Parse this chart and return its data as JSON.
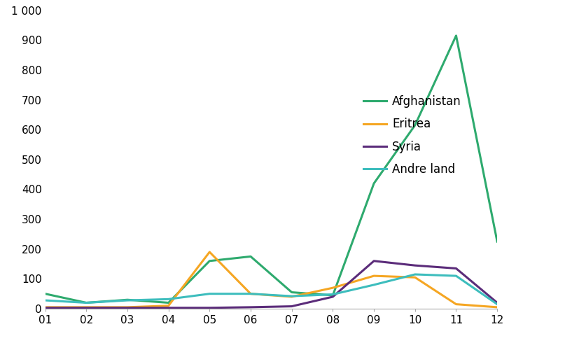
{
  "months": [
    1,
    2,
    3,
    4,
    5,
    6,
    7,
    8,
    9,
    10,
    11,
    12
  ],
  "month_labels": [
    "01",
    "02",
    "03",
    "04",
    "05",
    "06",
    "07",
    "08",
    "09",
    "10",
    "11",
    "12"
  ],
  "afghanistan": [
    50,
    20,
    30,
    20,
    160,
    175,
    55,
    45,
    420,
    615,
    915,
    225
  ],
  "eritrea": [
    5,
    5,
    5,
    10,
    190,
    50,
    40,
    70,
    110,
    105,
    15,
    5
  ],
  "syria": [
    3,
    3,
    3,
    3,
    3,
    5,
    8,
    40,
    160,
    145,
    135,
    20
  ],
  "andre_land": [
    28,
    20,
    28,
    32,
    50,
    50,
    42,
    48,
    80,
    115,
    110,
    15
  ],
  "colors": {
    "afghanistan": "#2EAA6E",
    "eritrea": "#F5A623",
    "syria": "#5B2C7A",
    "andre_land": "#3DBDBD"
  },
  "legend_labels": [
    "Afghanistan",
    "Eritrea",
    "Syria",
    "Andre land"
  ],
  "ylim": [
    0,
    1000
  ],
  "yticks": [
    0,
    100,
    200,
    300,
    400,
    500,
    600,
    700,
    800,
    900,
    1000
  ],
  "ytick_label_top": "1 000",
  "background_color": "#ffffff"
}
